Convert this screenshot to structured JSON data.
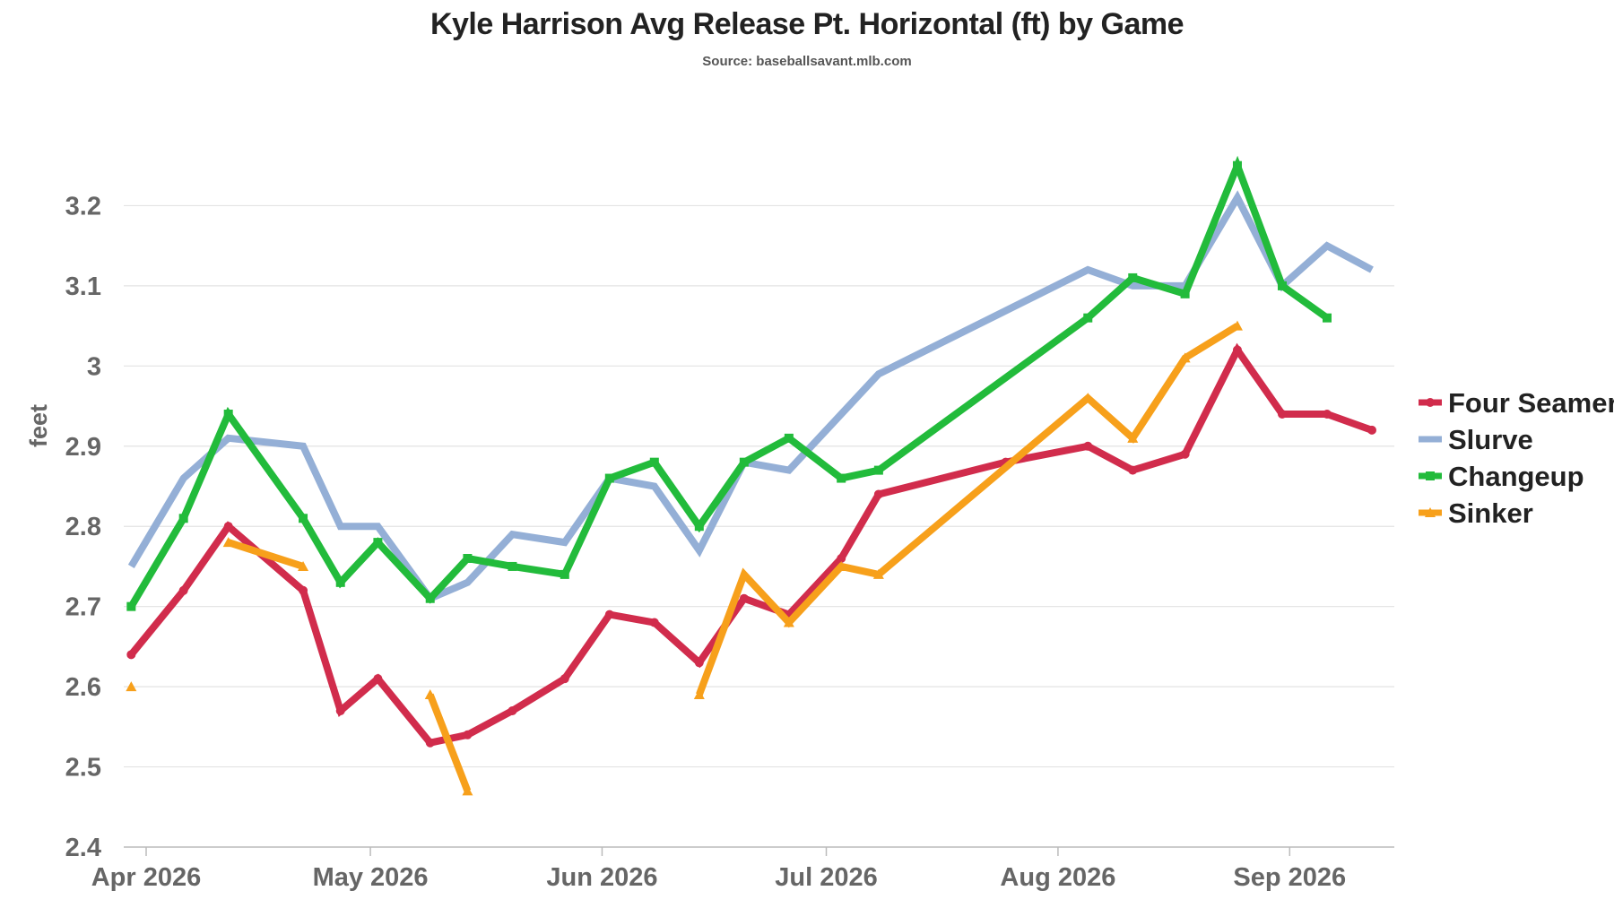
{
  "chart_data": {
    "type": "line",
    "title": "Kyle Harrison Avg Release Pt. Horizontal (ft) by Game",
    "subtitle": "Source: baseballsavant.mlb.com",
    "ylabel": "feet",
    "xlabel": "",
    "ylim": [
      2.4,
      3.3
    ],
    "xlim": [
      "2026-03-29",
      "2026-09-15"
    ],
    "grid": true,
    "legend_position": "right",
    "y_ticks": [
      "2.4",
      "2.5",
      "2.6",
      "2.7",
      "2.8",
      "2.9",
      "3",
      "3.1",
      "3.2"
    ],
    "x_ticks": [
      {
        "date": "2026-04-01",
        "label": "Apr 2026"
      },
      {
        "date": "2026-05-01",
        "label": "May 2026"
      },
      {
        "date": "2026-06-01",
        "label": "Jun 2026"
      },
      {
        "date": "2026-07-01",
        "label": "Jul 2026"
      },
      {
        "date": "2026-08-01",
        "label": "Aug 2026"
      },
      {
        "date": "2026-09-01",
        "label": "Sep 2026"
      }
    ],
    "series": [
      {
        "name": "Four Seamer",
        "color": "#d12c4c",
        "marker": "circle",
        "points": [
          [
            "2026-03-30",
            2.64
          ],
          [
            "2026-04-06",
            2.72
          ],
          [
            "2026-04-12",
            2.8
          ],
          [
            "2026-04-22",
            2.72
          ],
          [
            "2026-04-27",
            2.57
          ],
          [
            "2026-05-02",
            2.61
          ],
          [
            "2026-05-09",
            2.53
          ],
          [
            "2026-05-14",
            2.54
          ],
          [
            "2026-05-20",
            2.57
          ],
          [
            "2026-05-27",
            2.61
          ],
          [
            "2026-06-02",
            2.69
          ],
          [
            "2026-06-08",
            2.68
          ],
          [
            "2026-06-14",
            2.63
          ],
          [
            "2026-06-20",
            2.71
          ],
          [
            "2026-06-26",
            2.69
          ],
          [
            "2026-07-03",
            2.76
          ],
          [
            "2026-07-08",
            2.84
          ],
          [
            "2026-07-25",
            2.88
          ],
          [
            "2026-08-05",
            2.9
          ],
          [
            "2026-08-11",
            2.87
          ],
          [
            "2026-08-18",
            2.89
          ],
          [
            "2026-08-25",
            3.02
          ],
          [
            "2026-08-31",
            2.94
          ],
          [
            "2026-09-06",
            2.94
          ],
          [
            "2026-09-12",
            2.92
          ]
        ]
      },
      {
        "name": "Slurve",
        "color": "#94afd6",
        "marker": "line",
        "points": [
          [
            "2026-03-30",
            2.75
          ],
          [
            "2026-04-06",
            2.86
          ],
          [
            "2026-04-12",
            2.91
          ],
          [
            "2026-04-22",
            2.9
          ],
          [
            "2026-04-27",
            2.8
          ],
          [
            "2026-05-02",
            2.8
          ],
          [
            "2026-05-09",
            2.71
          ],
          [
            "2026-05-14",
            2.73
          ],
          [
            "2026-05-20",
            2.79
          ],
          [
            "2026-05-27",
            2.78
          ],
          [
            "2026-06-02",
            2.86
          ],
          [
            "2026-06-08",
            2.85
          ],
          [
            "2026-06-14",
            2.77
          ],
          [
            "2026-06-20",
            2.88
          ],
          [
            "2026-06-26",
            2.87
          ],
          [
            "2026-07-03",
            2.94
          ],
          [
            "2026-07-08",
            2.99
          ],
          [
            "2026-08-05",
            3.12
          ],
          [
            "2026-08-11",
            3.1
          ],
          [
            "2026-08-18",
            3.1
          ],
          [
            "2026-08-25",
            3.21
          ],
          [
            "2026-08-31",
            3.1
          ],
          [
            "2026-09-06",
            3.15
          ],
          [
            "2026-09-12",
            3.12
          ]
        ]
      },
      {
        "name": "Changeup",
        "color": "#22bb3b",
        "marker": "square",
        "points": [
          [
            "2026-03-30",
            2.7
          ],
          [
            "2026-04-06",
            2.81
          ],
          [
            "2026-04-12",
            2.94
          ],
          [
            "2026-04-22",
            2.81
          ],
          [
            "2026-04-27",
            2.73
          ],
          [
            "2026-05-02",
            2.78
          ],
          [
            "2026-05-09",
            2.71
          ],
          [
            "2026-05-14",
            2.76
          ],
          [
            "2026-05-20",
            2.75
          ],
          [
            "2026-05-27",
            2.74
          ],
          [
            "2026-06-02",
            2.86
          ],
          [
            "2026-06-08",
            2.88
          ],
          [
            "2026-06-14",
            2.8
          ],
          [
            "2026-06-20",
            2.88
          ],
          [
            "2026-06-26",
            2.91
          ],
          [
            "2026-07-03",
            2.86
          ],
          [
            "2026-07-08",
            2.87
          ],
          [
            "2026-08-05",
            3.06
          ],
          [
            "2026-08-11",
            3.11
          ],
          [
            "2026-08-18",
            3.09
          ],
          [
            "2026-08-25",
            3.25
          ],
          [
            "2026-08-31",
            3.1
          ],
          [
            "2026-09-06",
            3.06
          ]
        ]
      },
      {
        "name": "Sinker",
        "color": "#f7a01b",
        "marker": "triangle",
        "segments": [
          [
            [
              "2026-03-30",
              2.6
            ]
          ],
          [
            [
              "2026-04-12",
              2.78
            ],
            [
              "2026-04-22",
              2.75
            ]
          ],
          [
            [
              "2026-05-09",
              2.59
            ],
            [
              "2026-05-14",
              2.47
            ]
          ],
          [
            [
              "2026-06-14",
              2.59
            ],
            [
              "2026-06-20",
              2.74
            ],
            [
              "2026-06-26",
              2.68
            ],
            [
              "2026-07-03",
              2.75
            ],
            [
              "2026-07-08",
              2.74
            ],
            [
              "2026-08-05",
              2.96
            ],
            [
              "2026-08-11",
              2.91
            ],
            [
              "2026-08-18",
              3.01
            ],
            [
              "2026-08-25",
              3.05
            ]
          ]
        ]
      }
    ]
  }
}
